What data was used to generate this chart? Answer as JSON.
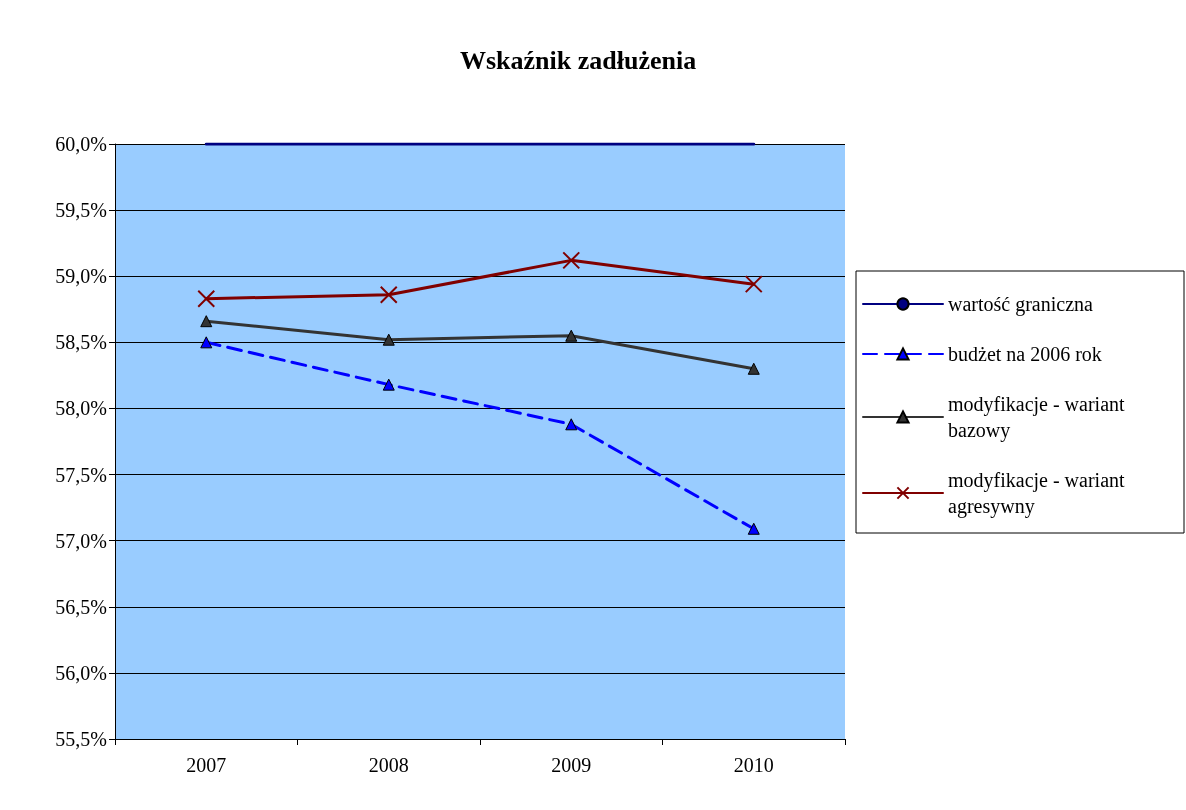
{
  "chart_data": {
    "type": "line",
    "title": "Wskaźnik zadłużenia",
    "categories": [
      "2007",
      "2008",
      "2009",
      "2010"
    ],
    "series": [
      {
        "name": "wartość graniczna",
        "color": "#000080",
        "values": [
          60.0,
          60.0,
          60.0,
          60.0
        ],
        "marker": "none",
        "line_style": "solid"
      },
      {
        "name": "budżet na 2006 rok",
        "color": "#0000ff",
        "values": [
          58.5,
          58.18,
          57.88,
          57.09
        ],
        "marker": "triangle",
        "line_style": "dashed"
      },
      {
        "name": "modyfikacje - wariant bazowy",
        "color": "#333333",
        "values": [
          58.66,
          58.52,
          58.55,
          58.3
        ],
        "marker": "triangle",
        "line_style": "solid"
      },
      {
        "name": "modyfikacje - wariant agresywny",
        "color": "#800000",
        "values": [
          58.83,
          58.86,
          59.12,
          58.94
        ],
        "marker": "cross",
        "line_style": "solid"
      }
    ],
    "ylim": [
      55.5,
      60.0
    ],
    "yticks": [
      {
        "value": 55.5,
        "label": "55,5%"
      },
      {
        "value": 56.0,
        "label": "56,0%"
      },
      {
        "value": 56.5,
        "label": "56,5%"
      },
      {
        "value": 57.0,
        "label": "57,0%"
      },
      {
        "value": 57.5,
        "label": "57,5%"
      },
      {
        "value": 58.0,
        "label": "58,0%"
      },
      {
        "value": 58.5,
        "label": "58,5%"
      },
      {
        "value": 59.0,
        "label": "59,0%"
      },
      {
        "value": 59.5,
        "label": "59,5%"
      },
      {
        "value": 60.0,
        "label": "60,0%"
      }
    ],
    "grid": "y",
    "legend": "right"
  }
}
